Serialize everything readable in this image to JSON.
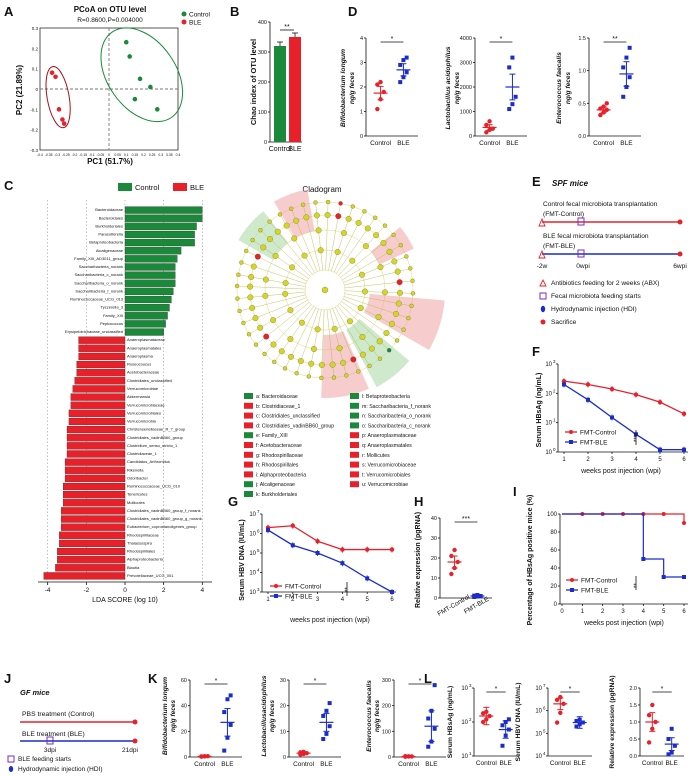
{
  "panels": {
    "A": {
      "letter": "A",
      "title": "PCoA on OTU level",
      "stats": "R=0.8600,P=0.004000",
      "xlabel": "PC1 (51.7%)",
      "ylabel": "PC2 (21.89%)",
      "legend": [
        "Control",
        "BLE"
      ],
      "colors": {
        "Control": "#1a8a3a",
        "BLE": "#d8202a"
      },
      "xticks": [
        "-0.4",
        "-0.35",
        "-0.3",
        "-0.25",
        "-0.2",
        "-0.15",
        "-0.1",
        "-0.05",
        "0",
        "0.05",
        "0.1",
        "0.15",
        "0.2",
        "0.25",
        "0.3",
        "0.35",
        "0.4"
      ],
      "yticks": [
        "0.3",
        "0.2",
        "0.1",
        "0",
        "-0.1",
        "-0.2",
        "-0.3"
      ],
      "control_points": [
        [
          0.1,
          0.23
        ],
        [
          0.12,
          0.16
        ],
        [
          0.18,
          0.05
        ],
        [
          0.24,
          0.01
        ],
        [
          0.28,
          -0.1
        ],
        [
          0.15,
          -0.05
        ]
      ],
      "ble_points": [
        [
          -0.33,
          0.08
        ],
        [
          -0.31,
          0.06
        ],
        [
          -0.29,
          -0.1
        ],
        [
          -0.27,
          -0.15
        ],
        [
          -0.26,
          -0.17
        ]
      ]
    },
    "B": {
      "letter": "B",
      "ylabel": "Chao index of OTU level",
      "yticks": [
        "0",
        "100",
        "200",
        "300",
        "400"
      ],
      "ylim": [
        0,
        400
      ],
      "categories": [
        "Control",
        "BLE"
      ],
      "values": [
        320,
        350
      ],
      "sig": "**"
    },
    "D": {
      "letter": "D",
      "charts": [
        {
          "ylabel": "Bifidobacterium longum",
          "unit": "ng/g feces",
          "yticks": [
            "0",
            "1",
            "2",
            "3",
            "4"
          ],
          "ylim": [
            0,
            4
          ],
          "categories": [
            "Control",
            "BLE"
          ],
          "means": [
            1.75,
            2.7
          ],
          "sig": "*",
          "control": [
            1.1,
            1.5,
            1.8,
            2.1,
            2.2
          ],
          "ble": [
            2.2,
            2.4,
            2.6,
            2.9,
            3.1,
            3.2
          ]
        },
        {
          "ylabel": "Lactobacillus acidophilus",
          "unit": "ng/g feces",
          "yticks": [
            "0",
            "1000",
            "2000",
            "3000",
            "4000"
          ],
          "ylim": [
            0,
            4000
          ],
          "categories": [
            "Control",
            "BLE"
          ],
          "means": [
            350,
            2000
          ],
          "sig": "*",
          "control": [
            150,
            250,
            300,
            450,
            600
          ],
          "ble": [
            1100,
            1300,
            1600,
            2800,
            3200
          ]
        },
        {
          "ylabel": "Enterococcus faecalis",
          "unit": "ng/g feces",
          "yticks": [
            "0.0",
            "0.5",
            "1.0",
            "1.5"
          ],
          "ylim": [
            0,
            1.5
          ],
          "categories": [
            "Control",
            "BLE"
          ],
          "means": [
            0.4,
            0.95
          ],
          "sig": "**",
          "control": [
            0.32,
            0.36,
            0.4,
            0.42,
            0.45,
            0.5
          ],
          "ble": [
            0.6,
            0.75,
            0.9,
            1.05,
            1.2,
            1.35
          ]
        }
      ]
    },
    "C": {
      "letter": "C",
      "legend": [
        "Control",
        "BLE"
      ],
      "xlabel": "LDA SCORE (log 10)",
      "xticks": [
        "-4",
        "-2",
        "0",
        "2",
        "4"
      ],
      "control_bars": [
        {
          "label": "Bacteroidaceae",
          "value": 4.0
        },
        {
          "label": "Bacteroidales",
          "value": 4.0
        },
        {
          "label": "Burkholderiales",
          "value": 3.7
        },
        {
          "label": "Parasutterella",
          "value": 3.6
        },
        {
          "label": "Betaproteobacteria",
          "value": 3.6
        },
        {
          "label": "Alcaligenaceae",
          "value": 2.9
        },
        {
          "label": "Family_XIII_AD3011_group",
          "value": 2.7
        },
        {
          "label": "Saccharibacteria_norank",
          "value": 2.6
        },
        {
          "label": "Saccharibacteria_c_norank",
          "value": 2.6
        },
        {
          "label": "Saccharibacteria_o_norank",
          "value": 2.6
        },
        {
          "label": "Saccharibacteria_f_norank",
          "value": 2.5
        },
        {
          "label": "Ruminococcaceae_UCG_013",
          "value": 2.4
        },
        {
          "label": "Tyzzerella_3",
          "value": 2.3
        },
        {
          "label": "Family_XIII",
          "value": 2.2
        },
        {
          "label": "Peptococcus",
          "value": 2.1
        },
        {
          "label": "Erysipelotrichaceae_unclassified",
          "value": 2.0
        }
      ],
      "ble_bars": [
        {
          "label": "Anaeroplasmataceae",
          "value": -2.4
        },
        {
          "label": "Anaeroplasmatales",
          "value": -2.4
        },
        {
          "label": "Anaeroplasma",
          "value": -2.4
        },
        {
          "label": "Roseocoucus",
          "value": -2.5
        },
        {
          "label": "Acetobacteraceae",
          "value": -2.5
        },
        {
          "label": "Clostridiales_unclassified",
          "value": -2.6
        },
        {
          "label": "Verrucomicrobiae",
          "value": -2.7
        },
        {
          "label": "Akkermansia",
          "value": -2.8
        },
        {
          "label": "Verrucomicrobiaceae",
          "value": -2.8
        },
        {
          "label": "Verrucomicrobiales",
          "value": -2.9
        },
        {
          "label": "Verrucomicrobia",
          "value": -2.9
        },
        {
          "label": "Christensenellaceae_R_7_group",
          "value": -3.0
        },
        {
          "label": "Clostridiales_vadinBB60_group",
          "value": -3.0
        },
        {
          "label": "Clostridium_sensu_stricto_1",
          "value": -3.0
        },
        {
          "label": "Clostridiaceae_1",
          "value": -3.0
        },
        {
          "label": "Candidatus_Arthromitus",
          "value": -3.1
        },
        {
          "label": "Rikenella",
          "value": -3.1
        },
        {
          "label": "Odoribacter",
          "value": -3.1
        },
        {
          "label": "Ruminococcaceae_UCG_010",
          "value": -3.2
        },
        {
          "label": "Tenericutes",
          "value": -3.2
        },
        {
          "label": "Mollicutes",
          "value": -3.2
        },
        {
          "label": "Clostridiales_vadinBB60_group_f_norank",
          "value": -3.3
        },
        {
          "label": "Clostridiales_vadinBB60_group_g_norank",
          "value": -3.3
        },
        {
          "label": "Eubacterium_coprostanoligenes_group",
          "value": -3.3
        },
        {
          "label": "Rhodospirillaceae",
          "value": -3.4
        },
        {
          "label": "Thalassospira",
          "value": -3.4
        },
        {
          "label": "Rhodospirillales",
          "value": -3.5
        },
        {
          "label": "Alphaproteobacteria",
          "value": -3.5
        },
        {
          "label": "Blautia",
          "value": -3.6
        },
        {
          "label": "Prevotellaceae_UCG_001",
          "value": -4.2
        }
      ],
      "cladogram_title": "Cladogram",
      "cladogram_legend": [
        {
          "key": "a: Bacteroidaceae",
          "group": "Control"
        },
        {
          "key": "b: Clostridiaceae_1",
          "group": "BLE"
        },
        {
          "key": "c: Clostridiales_unclassified",
          "group": "BLE"
        },
        {
          "key": "d: Clostridiales_vadinBB60_group",
          "group": "BLE"
        },
        {
          "key": "e: Family_XIII",
          "group": "Control"
        },
        {
          "key": "f: Acetobacteraceae",
          "group": "BLE"
        },
        {
          "key": "g: Rhodospirillaceae",
          "group": "BLE"
        },
        {
          "key": "h: Rhodospirillales",
          "group": "BLE"
        },
        {
          "key": "i: Alphaproteobacteria",
          "group": "BLE"
        },
        {
          "key": "j: Alcaligenaceae",
          "group": "Control"
        },
        {
          "key": "k: Burkholderiales",
          "group": "Control"
        },
        {
          "key": "l: Betaproteobacteria",
          "group": "Control"
        },
        {
          "key": "m: Saccharibacteria_f_norank",
          "group": "Control"
        },
        {
          "key": "n: Saccharibacteria_o_norank",
          "group": "Control"
        },
        {
          "key": "o: Saccharibacteria_c_norank",
          "group": "Control"
        },
        {
          "key": "p: Anaeroplasmataceae",
          "group": "BLE"
        },
        {
          "key": "q: Anaeroplasmatales",
          "group": "BLE"
        },
        {
          "key": "r: Mollicutes",
          "group": "BLE"
        },
        {
          "key": "s: Verrucomicrobiaceae",
          "group": "BLE"
        },
        {
          "key": "t: Verrucomicrobiales",
          "group": "BLE"
        },
        {
          "key": "u: Verrucomicrobiae",
          "group": "BLE"
        }
      ]
    },
    "E": {
      "letter": "E",
      "title": "SPF mice",
      "line1_title": "Control fecal microbiota transplantation",
      "line1_sub": "(FMT-Control)",
      "line2_title": "BLE fecal microbiota transplantation",
      "line2_sub": "(FMT-BLE)",
      "ticks": [
        "-2w",
        "0wpi",
        "6wpi"
      ],
      "legend": [
        {
          "symbol": "triangle",
          "text": "Antibiotics feeding for 2 weeks (ABX)"
        },
        {
          "symbol": "square",
          "text": "Fecal microbiota feeding starts"
        },
        {
          "symbol": "drop",
          "text": "Hydrodynamic injection (HDI)"
        },
        {
          "symbol": "dot",
          "text": "Sacrifice"
        }
      ]
    },
    "F": {
      "letter": "F",
      "ylabel": "Serum HBsAg (ng/mL)",
      "xlabel": "weeks post injection (wpi)",
      "yticks": [
        "10^0",
        "10^1",
        "10^2",
        "10^3"
      ],
      "xticks": [
        "1",
        "2",
        "3",
        "4",
        "5",
        "6"
      ],
      "sig": "****",
      "series": [
        {
          "name": "FMT-Control",
          "color": "#e8202a",
          "x": [
            1,
            2,
            3,
            4,
            5,
            6
          ],
          "y": [
            260,
            200,
            140,
            90,
            50,
            20
          ]
        },
        {
          "name": "FMT-BLE",
          "color": "#1a2ccc",
          "x": [
            1,
            2,
            3,
            4,
            5,
            6
          ],
          "y": [
            200,
            60,
            15,
            4,
            1.2,
            1.2
          ]
        }
      ]
    },
    "G": {
      "letter": "G",
      "ylabel": "Serum HBV DNA (IU/mL)",
      "xlabel": "weeks post injection (wpi)",
      "yticks": [
        "10^3",
        "10^4",
        "10^5",
        "10^6",
        "10^7"
      ],
      "xticks": [
        "1",
        "2",
        "3",
        "4",
        "5",
        "6"
      ],
      "sig": "**",
      "series": [
        {
          "name": "FMT-Control",
          "color": "#e8202a",
          "x": [
            1,
            2,
            3,
            4,
            5,
            6
          ],
          "y": [
            2000000,
            2500000,
            400000,
            150000,
            150000,
            150000
          ]
        },
        {
          "name": "FMT-BLE",
          "color": "#1a2ccc",
          "x": [
            1,
            2,
            3,
            4,
            5,
            6
          ],
          "y": [
            1500000,
            250000,
            100000,
            30000,
            5000,
            1000
          ]
        }
      ]
    },
    "H": {
      "letter": "H",
      "ylabel": "Relative expression (pgRNA)",
      "yticks": [
        "0",
        "10",
        "20",
        "30",
        "40"
      ],
      "ylim": [
        0,
        40
      ],
      "categories": [
        "FMT-Control",
        "FMT-BLE"
      ],
      "means": [
        18,
        1
      ],
      "sig": "***",
      "control": [
        12,
        15,
        18,
        21,
        24
      ],
      "ble": [
        0.5,
        0.8,
        1.0,
        1.2,
        1.5
      ]
    },
    "I": {
      "letter": "I",
      "ylabel": "Percentage of HBsAg positive mice (%)",
      "xlabel": "weeks post injection (wpi)",
      "yticks": [
        "0",
        "20",
        "40",
        "60",
        "80",
        "100"
      ],
      "xticks": [
        "0",
        "1",
        "2",
        "3",
        "4",
        "5",
        "6"
      ],
      "sig": "**",
      "series": [
        {
          "name": "FMT-Control",
          "color": "#e8202a",
          "steps": [
            [
              0,
              100
            ],
            [
              6,
              100
            ],
            [
              6,
              90
            ]
          ],
          "marks": [
            [
              1,
              100
            ],
            [
              2,
              100
            ],
            [
              3,
              100
            ],
            [
              4,
              100
            ],
            [
              5,
              100
            ],
            [
              6,
              90
            ]
          ]
        },
        {
          "name": "FMT-BLE",
          "color": "#1a2ccc",
          "steps": [
            [
              0,
              100
            ],
            [
              4,
              100
            ],
            [
              4,
              50
            ],
            [
              5,
              50
            ],
            [
              5,
              30
            ],
            [
              6,
              30
            ]
          ],
          "marks": [
            [
              4,
              50
            ],
            [
              5,
              30
            ],
            [
              6,
              30
            ]
          ]
        }
      ]
    },
    "J": {
      "letter": "J",
      "title": "GF mice",
      "line1": "PBS treatment (Control)",
      "line2": "BLE treatment (BLE)",
      "ticks": [
        "3dpi",
        "21dpi"
      ],
      "legend": [
        {
          "symbol": "square",
          "text": "BLE feeding starts"
        },
        {
          "symbol": "drop",
          "text": "Hydrodynamic injection (HDI)"
        },
        {
          "symbol": "dot",
          "text": "Sacrifice"
        }
      ]
    },
    "K": {
      "letter": "K",
      "charts": [
        {
          "ylabel": "Bifidobacterium longum",
          "unit": "ng/g feces",
          "yticks": [
            "0",
            "20",
            "40",
            "60"
          ],
          "ylim": [
            0,
            60
          ],
          "categories": [
            "Control",
            "BLE"
          ],
          "means": [
            0.5,
            27
          ],
          "sig": "*",
          "control": [
            0.3,
            0.5,
            0.6,
            0.4,
            0.5
          ],
          "ble": [
            5,
            15,
            25,
            35,
            45,
            48
          ]
        },
        {
          "ylabel": "Lactobacillusacidophilus",
          "unit": "ng/g feces",
          "yticks": [
            "0",
            "10",
            "20",
            "30"
          ],
          "ylim": [
            0,
            30
          ],
          "categories": [
            "Control",
            "BLE"
          ],
          "means": [
            1.5,
            13.5
          ],
          "sig": "*",
          "control": [
            1,
            1.2,
            1.5,
            1.8,
            2
          ],
          "ble": [
            7,
            9,
            12,
            16,
            18,
            21
          ]
        },
        {
          "ylabel": "Enterococcus faecalis",
          "unit": "ng/g feces",
          "yticks": [
            "0",
            "100",
            "200",
            "300"
          ],
          "ylim": [
            0,
            300
          ],
          "categories": [
            "Control",
            "BLE"
          ],
          "means": [
            2,
            120
          ],
          "sig": "*",
          "control": [
            1,
            2,
            2,
            3,
            2
          ],
          "ble": [
            40,
            60,
            110,
            150,
            180,
            280
          ]
        }
      ]
    },
    "L": {
      "letter": "L",
      "charts": [
        {
          "ylabel": "Serum HBsAg (ng/mL)",
          "yticks": [
            "10^1",
            "10^2",
            "10^3"
          ],
          "categories": [
            "Control",
            "BLE"
          ],
          "means": [
            150,
            60
          ],
          "sig": "*",
          "control": [
            100,
            120,
            150,
            180,
            200
          ],
          "ble": [
            20,
            40,
            60,
            80,
            100,
            120
          ]
        },
        {
          "ylabel": "Serum HBV DNA (IU/mL)",
          "yticks": [
            "10^4",
            "10^5",
            "10^6",
            "10^7"
          ],
          "categories": [
            "Control",
            "BLE"
          ],
          "means": [
            2000000,
            300000
          ],
          "sig": "*",
          "control": [
            300000,
            800000,
            2000000,
            3000000,
            4000000
          ],
          "ble": [
            200000,
            250000,
            300000,
            350000,
            400000
          ]
        },
        {
          "ylabel": "Relative expression (pgRNA)",
          "yticks": [
            "0.0",
            "0.5",
            "1.0",
            "1.5",
            "2.0"
          ],
          "ylim": [
            0,
            2.0
          ],
          "categories": [
            "Control",
            "BLE"
          ],
          "means": [
            1.0,
            0.35
          ],
          "sig": "*",
          "control": [
            0.4,
            0.8,
            1.0,
            1.2,
            1.5
          ],
          "ble": [
            0.05,
            0.1,
            0.3,
            0.5,
            0.8
          ]
        }
      ]
    }
  }
}
